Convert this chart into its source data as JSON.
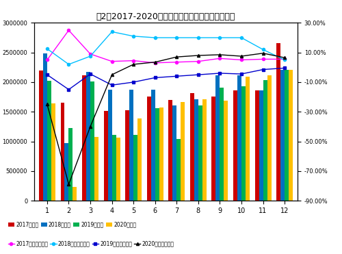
{
  "title": "图2：2017-2020年月度乘用车销量及同比变化情况",
  "months": [
    "1",
    "2",
    "3",
    "4",
    "5",
    "6",
    "7",
    "8",
    "9",
    "10",
    "11",
    "12"
  ],
  "sales_2017": [
    2200000,
    1650000,
    2120000,
    1520000,
    1530000,
    1760000,
    1700000,
    1810000,
    1760000,
    1860000,
    1860000,
    2660000
  ],
  "sales_2018": [
    2490000,
    970000,
    2170000,
    1870000,
    1870000,
    1870000,
    1610000,
    1710000,
    2110000,
    2110000,
    1860000,
    2210000
  ],
  "sales_2019": [
    2020000,
    1230000,
    2010000,
    1110000,
    1110000,
    1560000,
    1040000,
    1610000,
    1910000,
    1930000,
    2030000,
    2210000
  ],
  "sales_2020": [
    1640000,
    230000,
    1070000,
    1060000,
    1390000,
    1570000,
    1670000,
    1710000,
    1690000,
    2090000,
    2110000,
    2210000
  ],
  "growth_2017": [
    5.0,
    25.0,
    9.0,
    4.0,
    4.5,
    3.0,
    3.5,
    4.0,
    6.0,
    5.0,
    5.5,
    5.5
  ],
  "growth_2018": [
    12.5,
    2.0,
    7.5,
    24.0,
    21.0,
    20.0,
    20.0,
    20.0,
    20.0,
    20.0,
    12.0,
    5.0
  ],
  "growth_2019": [
    -5.0,
    -15.0,
    -4.5,
    -12.0,
    -10.0,
    -7.0,
    -6.0,
    -5.0,
    -4.0,
    -4.5,
    -1.5,
    -0.5
  ],
  "growth_2020": [
    -25.0,
    -79.0,
    -40.0,
    -5.0,
    2.0,
    3.5,
    7.0,
    8.0,
    8.5,
    7.5,
    9.5,
    6.5
  ],
  "bar_colors": [
    "#CC0000",
    "#0070C0",
    "#00B050",
    "#FFC000"
  ],
  "line_colors": [
    "#FF00FF",
    "#00BFFF",
    "#0000CD",
    "#000000"
  ],
  "line_markers": [
    "o",
    "o",
    "s",
    "^"
  ],
  "ylim_left": [
    0,
    3000000
  ],
  "ylim_right": [
    30.0,
    -90.0
  ],
  "legend_labels_bar": [
    "2017年销量",
    "2018年销量",
    "2019年销量",
    "2020年销量"
  ],
  "legend_labels_line": [
    "2017年同比增长率",
    "2018年同比增长率",
    "2019年同比增长率",
    "2020年同比增长率"
  ],
  "yticks_left": [
    0,
    500000,
    1000000,
    1500000,
    2000000,
    2500000,
    3000000
  ],
  "yticks_right": [
    30.0,
    10.0,
    -10.0,
    -30.0,
    -50.0,
    -70.0,
    -90.0
  ],
  "ytick_right_labels": [
    "30.00%",
    "10.00%",
    "-10.00%",
    "-30.00%",
    "-50.00%",
    "-70.00%",
    "-90.00%"
  ]
}
